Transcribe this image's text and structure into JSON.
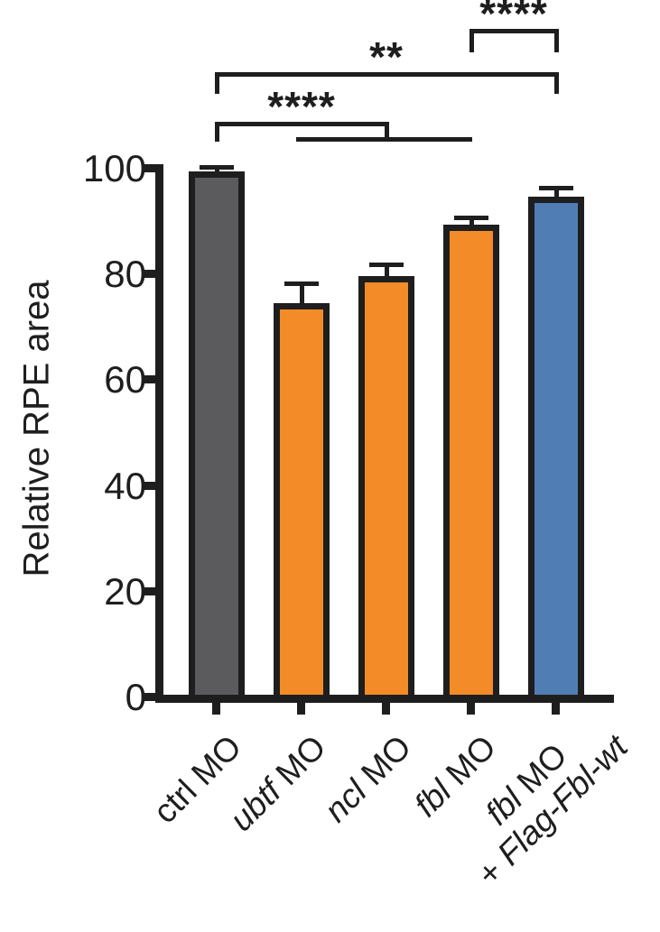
{
  "figure": {
    "background": "#FFFFFF",
    "axis_color": "#1E1E1E"
  },
  "chart_data": {
    "type": "bar",
    "title": "",
    "xlabel": "",
    "ylabel": "Relative RPE area",
    "ylim": [
      0,
      100
    ],
    "yticks": [
      0,
      20,
      40,
      60,
      80,
      100
    ],
    "grid": false,
    "legend": "none",
    "categories": [
      "ctrl MO",
      "ubtf MO",
      "ncl MO",
      "fbl MO",
      "fbl MO + Flag-Fbl-wt"
    ],
    "categories_rich": [
      {
        "lines": [
          [
            {
              "t": "ctrl MO",
              "i": false
            }
          ]
        ]
      },
      {
        "lines": [
          [
            {
              "t": "ubtf",
              "i": true
            },
            {
              "t": " MO",
              "i": false
            }
          ]
        ]
      },
      {
        "lines": [
          [
            {
              "t": "ncl",
              "i": true
            },
            {
              "t": " MO",
              "i": false
            }
          ]
        ]
      },
      {
        "lines": [
          [
            {
              "t": "fbl",
              "i": true
            },
            {
              "t": " MO",
              "i": false
            }
          ]
        ]
      },
      {
        "lines": [
          [
            {
              "t": "fbl",
              "i": true
            },
            {
              "t": " MO",
              "i": false
            }
          ],
          [
            {
              "t": "+ ",
              "i": false
            },
            {
              "t": "Flag-Fbl-wt",
              "i": true
            }
          ]
        ]
      }
    ],
    "series": [
      {
        "name": "Relative RPE area",
        "values": [
          99.6,
          74.9,
          80.0,
          89.7,
          95.0
        ],
        "errors": [
          0.9,
          3.7,
          2.2,
          1.4,
          1.6
        ]
      }
    ],
    "bar_colors": [
      "#5B5B5E",
      "#F38B28",
      "#F38B28",
      "#F38B28",
      "#507EB4"
    ],
    "bar_edge_color": "#1E1E1E",
    "error_bar_color": "#1E1E1E",
    "comparisons": [
      {
        "stars": "****",
        "from": "fbl MO",
        "to": "fbl MO + Flag-Fbl-wt",
        "from_index": 3,
        "to_index": 4,
        "level_y": 34,
        "drop": 24
      },
      {
        "stars": "**",
        "from": "ctrl MO",
        "to": "fbl MO + Flag-Fbl-wt",
        "from_index": 0,
        "to_index": 4,
        "level_y": 82,
        "drop": 22
      },
      {
        "stars": "****",
        "from": "ctrl MO",
        "to": "ncl MO",
        "from_index": 0,
        "to_index": 2,
        "level_y": 137,
        "drop": 20
      }
    ],
    "group_underline": {
      "from_index": 1,
      "to_index": 3,
      "y": 152
    }
  }
}
